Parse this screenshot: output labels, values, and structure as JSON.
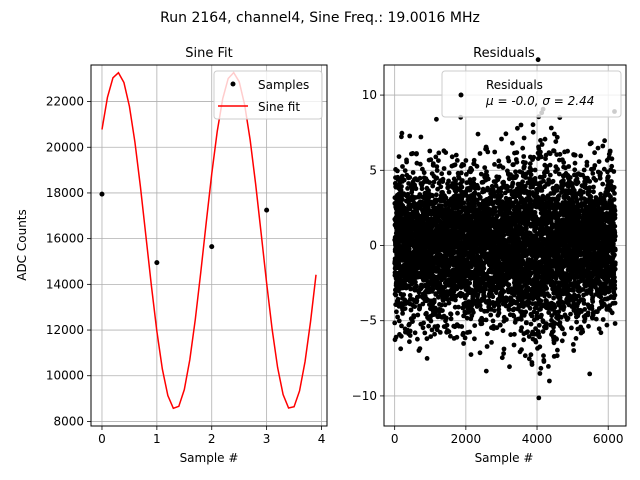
{
  "suptitle": "Run 2164, channel4, Sine Freq.: 19.0016 MHz",
  "chart_data": [
    {
      "type": "line",
      "title": "Sine Fit",
      "xlabel": "Sample #",
      "ylabel": "ADC Counts",
      "xlim": [
        -0.2,
        4.1
      ],
      "ylim": [
        7800,
        23600
      ],
      "xticks": [
        0,
        1,
        2,
        3,
        4
      ],
      "yticks": [
        8000,
        10000,
        12000,
        14000,
        16000,
        18000,
        20000,
        22000
      ],
      "grid": true,
      "legend": {
        "placement": "upper-right",
        "entries": [
          "Samples",
          "Sine fit"
        ]
      },
      "colors": {
        "samples": "#000000",
        "fit": "#ff0000",
        "grid": "#b0b0b0"
      },
      "series": [
        {
          "name": "Samples",
          "style": "scatter",
          "x": [
            0,
            1,
            2,
            3
          ],
          "y": [
            17950,
            14950,
            15650,
            17250
          ]
        },
        {
          "name": "Sine fit",
          "style": "line",
          "fit": {
            "offset": 15900,
            "amplitude": 7370,
            "period": 2.105,
            "phase": 0.284
          },
          "x_range": [
            0,
            3.9
          ],
          "step": 0.1
        }
      ]
    },
    {
      "type": "scatter",
      "title": "Residuals",
      "xlabel": "Sample #",
      "ylabel": "",
      "xlim": [
        -300,
        6500
      ],
      "ylim": [
        -12,
        12
      ],
      "xticks": [
        0,
        2000,
        4000,
        6000
      ],
      "yticks": [
        -10,
        -5,
        0,
        5,
        10
      ],
      "grid": true,
      "legend": {
        "placement": "upper-right",
        "entries": [
          "Residuals",
          "μ = -0.0, σ = 2.44"
        ]
      },
      "colors": {
        "points": "#000000",
        "grid": "#b0b0b0"
      },
      "series": [
        {
          "name": "Residuals",
          "n_points": 6200,
          "x_range": [
            0,
            6200
          ],
          "mean": 0.0,
          "std": 2.44
        }
      ]
    }
  ]
}
